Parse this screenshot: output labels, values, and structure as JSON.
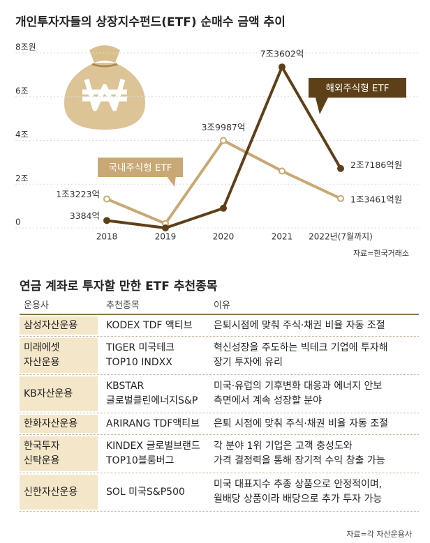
{
  "chart_data": {
    "type": "line",
    "title": "개인투자자들의 상장지수펀드(ETF) 순매수 금액 추이",
    "categories": [
      "2018",
      "2019",
      "2020",
      "2021",
      "2022년(7월까지)"
    ],
    "series": [
      {
        "name": "국내주식형 ETF",
        "color": "#c8a874",
        "values": [
          1.3223,
          0.2,
          3.9987,
          2.6,
          1.3461
        ],
        "value_labels": [
          "1조3223억",
          null,
          "3조9987억",
          null,
          "1조3461억원"
        ]
      },
      {
        "name": "해외주식형 ETF",
        "color": "#5e4018",
        "values": [
          0.3384,
          0.0,
          0.9,
          7.3602,
          2.7186
        ],
        "value_labels": [
          "3384억",
          null,
          null,
          "7조3602억",
          "2조7186억원"
        ]
      }
    ],
    "ylim": [
      0,
      8
    ],
    "yticks": [
      0,
      {
        "value": 2,
        "label": "2조"
      },
      {
        "value": 4,
        "label": "4조"
      },
      {
        "value": 6,
        "label": "6조"
      },
      {
        "value": 8,
        "label": "8조원"
      }
    ],
    "grid": true,
    "source": "자료=한국거래소"
  },
  "table": {
    "title": "연금 계좌로 투자할 만한 ETF 추천종목",
    "header": [
      "운용사",
      "추천종목",
      "이유"
    ],
    "rows": [
      [
        "삼성자산운용",
        "KODEX TDF 액티브",
        "은퇴시점에 맞춰 주식·채권 비율 자동 조절"
      ],
      [
        "미래에셋\n자산운용",
        "TIGER 미국테크\nTOP10 INDXX",
        "혁신성장을 주도하는 빅테크 기업에 투자해\n장기 투자에 유리"
      ],
      [
        "KB자산운용",
        "KBSTAR\n글로벌클린에너지S&P",
        "미국·유럽의 기후변화 대응과 에너지 안보\n측면에서 계속 성장할 분야"
      ],
      [
        "한화자산운용",
        "ARIRANG TDF액티브",
        "은퇴 시점에 맞춰 주식·채권 비율 자동 조절"
      ],
      [
        "한국투자\n신탁운용",
        "KINDEX 글로벌브랜드\nTOP10블룸버그",
        "각 분야 1위 기업은 고객 충성도와\n가격 결정력을 통해 장기적 수익 창출 가능"
      ],
      [
        "신한자산운용",
        "SOL 미국S&P500",
        "미국 대표지수 추종 상품으로 안정적이며,\n월배당 상품이라 배당으로 추가 투자 가능"
      ]
    ],
    "source": "자료=각 자산운용사"
  }
}
